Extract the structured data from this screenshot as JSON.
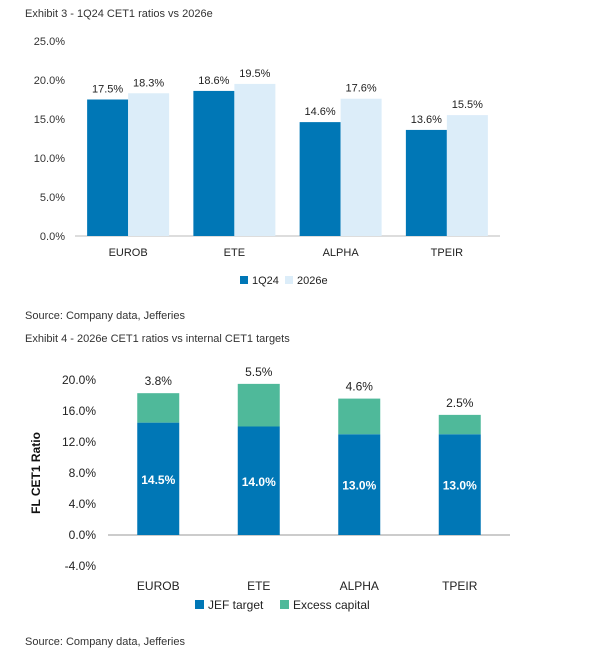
{
  "exhibit3": {
    "title": "Exhibit 3 - 1Q24 CET1 ratios vs 2026e",
    "source": "Source: Company data, Jefferies"
  },
  "exhibit4": {
    "title": "Exhibit 4 - 2026e CET1 ratios vs internal CET1 targets",
    "source": "Source: Company data, Jefferies"
  },
  "colors": {
    "dark_blue": "#0077b6",
    "light_blue": "#dcedf9",
    "teal": "#4fb99a"
  },
  "chart_data": [
    {
      "type": "bar",
      "title": "Exhibit 3 - 1Q24 CET1 ratios vs 2026e",
      "categories": [
        "EUROB",
        "ETE",
        "ALPHA",
        "TPEIR"
      ],
      "series": [
        {
          "name": "1Q24",
          "values": [
            17.5,
            18.6,
            14.6,
            13.6
          ],
          "labels": [
            "17.5%",
            "18.6%",
            "14.6%",
            "13.6%"
          ],
          "color": "#0077b6"
        },
        {
          "name": "2026e",
          "values": [
            18.3,
            19.5,
            17.6,
            15.5
          ],
          "labels": [
            "18.3%",
            "19.5%",
            "17.6%",
            "15.5%"
          ],
          "color": "#dcedf9"
        }
      ],
      "yticks": [
        "0.0%",
        "5.0%",
        "10.0%",
        "15.0%",
        "20.0%",
        "25.0%"
      ],
      "ylim": [
        0,
        25
      ],
      "grid": false,
      "legend": "bottom"
    },
    {
      "type": "bar",
      "stacked": true,
      "title": "Exhibit 4 - 2026e CET1 ratios vs internal CET1 targets",
      "categories": [
        "EUROB",
        "ETE",
        "ALPHA",
        "TPEIR"
      ],
      "ylabel": "FL CET1 Ratio",
      "series": [
        {
          "name": "JEF target",
          "values": [
            14.5,
            14.0,
            13.0,
            13.0
          ],
          "labels": [
            "14.5%",
            "14.0%",
            "13.0%",
            "13.0%"
          ],
          "color": "#0077b6"
        },
        {
          "name": "Excess capital",
          "values": [
            3.8,
            5.5,
            4.6,
            2.5
          ],
          "labels": [
            "3.8%",
            "5.5%",
            "4.6%",
            "2.5%"
          ],
          "color": "#4fb99a"
        }
      ],
      "yticks": [
        "-4.0%",
        "0.0%",
        "4.0%",
        "8.0%",
        "12.0%",
        "16.0%",
        "20.0%"
      ],
      "ylim": [
        -4,
        20
      ],
      "grid": false,
      "legend": "bottom"
    }
  ]
}
